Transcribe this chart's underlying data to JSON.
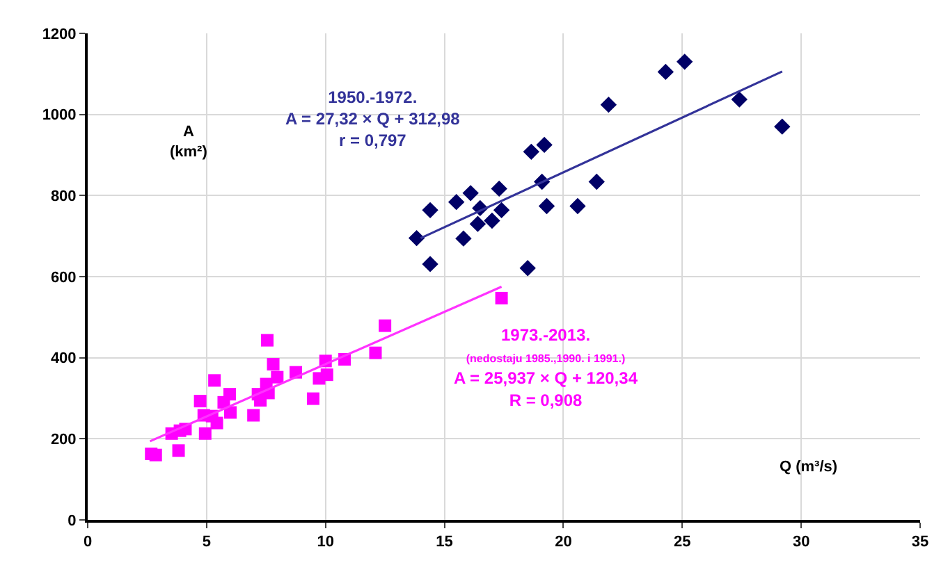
{
  "chart_data": {
    "type": "scatter",
    "xlabel": "Q (m³/s)",
    "ylabel": "A\n(km²)",
    "xlim": [
      0,
      35
    ],
    "xticks": [
      0,
      5,
      10,
      15,
      20,
      25,
      30,
      35
    ],
    "ylim": [
      0,
      1200
    ],
    "yticks": [
      0,
      200,
      400,
      600,
      800,
      1000,
      1200
    ],
    "grid": true,
    "series": [
      {
        "color": "#000066",
        "marker": "diamond",
        "x": [
          13.83,
          14.4,
          14.4,
          15.5,
          15.8,
          16.1,
          16.4,
          16.5,
          17.0,
          17.3,
          17.4,
          18.5,
          18.65,
          19.2,
          19.1,
          19.3,
          20.6,
          21.4,
          21.9,
          24.3,
          25.1,
          27.4,
          29.2
        ],
        "values": [
          695,
          764,
          631,
          784,
          694,
          806,
          730,
          769,
          738,
          817,
          764,
          621,
          908,
          925,
          834,
          774,
          774,
          834,
          1024,
          1105,
          1130,
          1037,
          970
        ]
      },
      {
        "type": "line",
        "color": "#333399",
        "marker": "none",
        "line_style": "solid",
        "x": [
          14.0,
          29.2
        ],
        "values": [
          695,
          1106
        ]
      },
      {
        "color": "#ff00ff",
        "marker": "square",
        "x": [
          2.67,
          2.86,
          3.82,
          3.53,
          3.88,
          4.11,
          4.73,
          5.33,
          4.88,
          4.94,
          5.23,
          5.43,
          5.72,
          5.97,
          6.0,
          6.97,
          7.16,
          7.26,
          7.51,
          7.6,
          7.55,
          7.8,
          7.97,
          8.75,
          9.48,
          9.73,
          10.06,
          10.0,
          10.8,
          12.1,
          12.5,
          17.4
        ],
        "values": [
          163,
          160,
          171,
          213,
          220,
          224,
          293,
          344,
          258,
          213,
          256,
          239,
          290,
          310,
          265,
          258,
          310,
          295,
          335,
          313,
          443,
          384,
          352,
          364,
          299,
          349,
          358,
          392,
          396,
          412,
          479,
          547
        ]
      },
      {
        "type": "line",
        "color": "#ff33ff",
        "marker": "none",
        "line_style": "solid",
        "x": [
          2.62,
          17.4
        ],
        "values": [
          194,
          575
        ]
      }
    ],
    "annotations": [
      "1950.-1972.\nA = 27,32 × Q + 312,98\nr = 0,797",
      "1973.-2013.\n(nedostaju 1985.,1990. i 1991.)\nA = 25,937 × Q + 120,34\nR = 0,908"
    ]
  }
}
